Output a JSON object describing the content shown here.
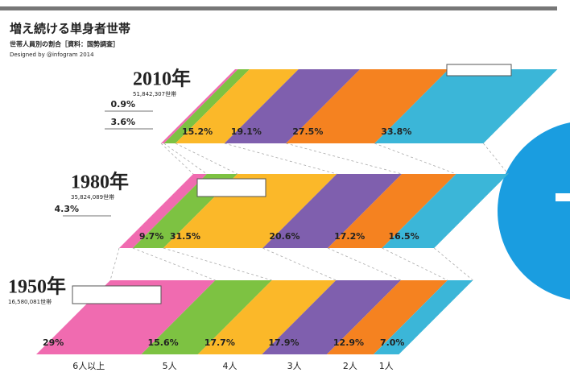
{
  "chart_data": {
    "type": "skewed-stacked-bar",
    "title": "増え続ける単身者世帯",
    "subtitle": "世帯人員別の割合［資料：国勢調査］",
    "credit": "Designed by @infogram 2014",
    "categories": [
      "2010年",
      "1980年",
      "1950年"
    ],
    "category_notes": [
      "51,842,307世帯",
      "35,824,089世帯",
      "16,580,081世帯"
    ],
    "xlim": [
      0,
      100
    ],
    "series": [
      {
        "name": "6人以上",
        "color": "#f06bb0",
        "values": [
          0.9,
          4.3,
          29
        ],
        "value_labels": [
          "0.9%",
          "4.3%",
          "29%"
        ]
      },
      {
        "name": "5人",
        "color": "#7dc242",
        "values": [
          3.6,
          9.7,
          15.6
        ],
        "value_labels": [
          "3.6%",
          "9.7%",
          "15.6%"
        ]
      },
      {
        "name": "4人",
        "color": "#fbb829",
        "values": [
          15.2,
          31.5,
          17.7
        ],
        "value_labels": [
          "15.2%",
          "31.5%",
          "17.7%"
        ]
      },
      {
        "name": "3人",
        "color": "#7f5fae",
        "values": [
          19.1,
          20.6,
          17.9
        ],
        "value_labels": [
          "19.1%",
          "20.6%",
          "17.9%"
        ]
      },
      {
        "name": "2人",
        "color": "#f58220",
        "values": [
          27.5,
          17.2,
          12.9
        ],
        "value_labels": [
          "27.5%",
          "17.2%",
          "12.9%"
        ]
      },
      {
        "name": "1人",
        "color": "#3bb6d8",
        "values": [
          33.8,
          16.5,
          7.0
        ],
        "value_labels": [
          "33.8%",
          "16.5%",
          "7.0%"
        ]
      }
    ]
  }
}
